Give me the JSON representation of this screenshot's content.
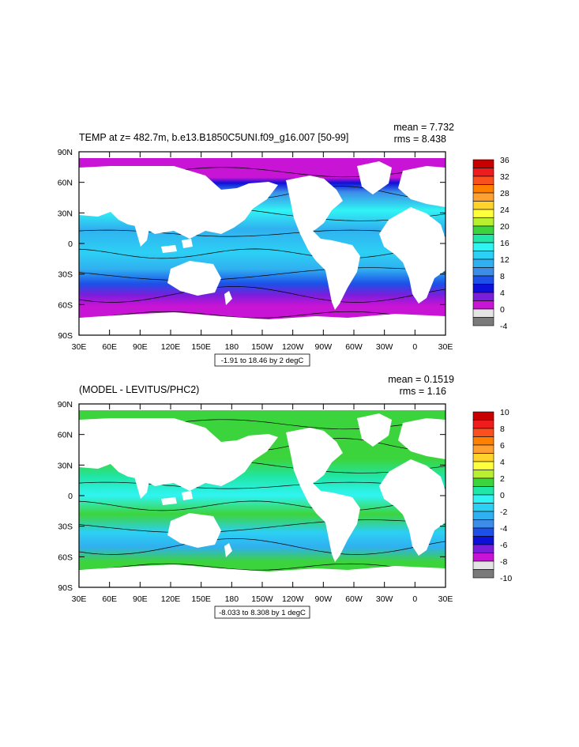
{
  "panels": [
    {
      "title": "TEMP at z= 482.7m, b.e13.B1850C5UNI.f09_g16.007 [50-99]",
      "mean_label": "mean = 7.732",
      "rms_label": "rms = 8.438",
      "range_label": "-1.91 to 18.46 by 2 degC",
      "lat_ticks": [
        "90N",
        "60N",
        "30N",
        "0",
        "30S",
        "60S",
        "90S"
      ],
      "lon_ticks": [
        "30E",
        "60E",
        "90E",
        "120E",
        "150E",
        "180",
        "150W",
        "120W",
        "90W",
        "60W",
        "30W",
        "0",
        "30E"
      ],
      "colorbar": {
        "labels": [
          "36",
          "32",
          "28",
          "24",
          "20",
          "16",
          "12",
          "8",
          "4",
          "0",
          "-4"
        ],
        "colors": [
          "#c80000",
          "#ee1c1c",
          "#f9501e",
          "#ff7f00",
          "#ffa030",
          "#ffd22c",
          "#ffff3c",
          "#b8f030",
          "#3cd43c",
          "#20e6a8",
          "#30f4f4",
          "#2cd0f4",
          "#30b0f0",
          "#3c8ce8",
          "#1c50e8",
          "#0c10d8",
          "#7a1edc",
          "#c814d4",
          "#e4e4e4",
          "#7a7a7a"
        ]
      }
    },
    {
      "title": "(MODEL - LEVITUS/PHC2)",
      "mean_label": "mean = 0.1519",
      "rms_label": "rms = 1.16",
      "range_label": "-8.033 to 8.308 by 1 degC",
      "lat_ticks": [
        "90N",
        "60N",
        "30N",
        "0",
        "30S",
        "60S",
        "90S"
      ],
      "lon_ticks": [
        "30E",
        "60E",
        "90E",
        "120E",
        "150E",
        "180",
        "150W",
        "120W",
        "90W",
        "60W",
        "30W",
        "0",
        "30E"
      ],
      "colorbar": {
        "labels": [
          "10",
          "8",
          "6",
          "4",
          "2",
          "0",
          "-2",
          "-4",
          "-6",
          "-8",
          "-10"
        ],
        "colors": [
          "#c80000",
          "#ee1c1c",
          "#f9501e",
          "#ff7f00",
          "#ffa030",
          "#ffd22c",
          "#ffff3c",
          "#b8f030",
          "#3cd43c",
          "#20e6a8",
          "#30f4f4",
          "#2cd0f4",
          "#30b0f0",
          "#3c8ce8",
          "#1c50e8",
          "#0c10d8",
          "#7a1edc",
          "#c814d4",
          "#e4e4e4",
          "#7a7a7a"
        ]
      }
    }
  ]
}
